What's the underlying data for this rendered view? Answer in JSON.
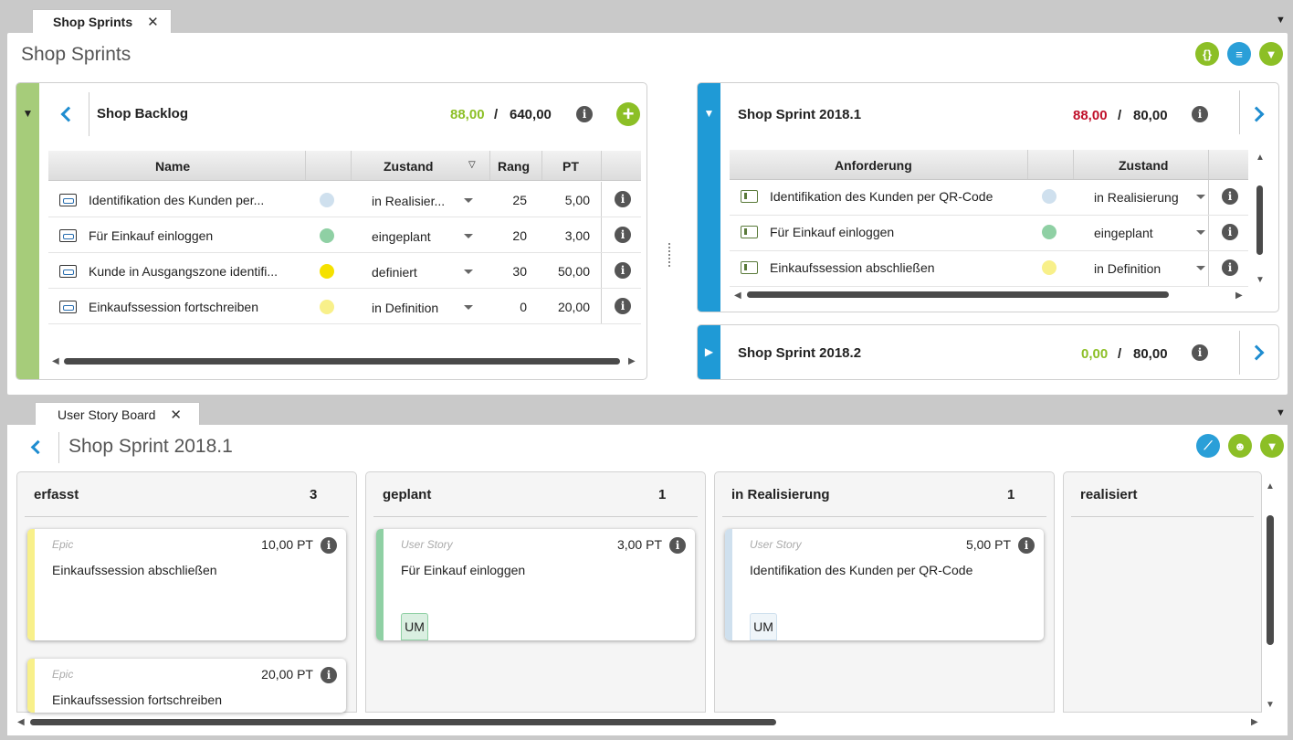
{
  "top_tab": {
    "label": "Shop Sprints"
  },
  "top_panel": {
    "title": "Shop Sprints"
  },
  "backlog": {
    "title": "Shop Backlog",
    "used": "88,00",
    "separator": "/",
    "total": "640,00",
    "columns": {
      "name": "Name",
      "zustand": "Zustand",
      "rang": "Rang",
      "pt": "PT"
    },
    "rows": [
      {
        "name": "Identifikation des Kunden per...",
        "zustand": "in Realisier...",
        "rang": "25",
        "pt": "5,00",
        "color": "#cfe0ee"
      },
      {
        "name": "Für Einkauf einloggen",
        "zustand": "eingeplant",
        "rang": "20",
        "pt": "3,00",
        "color": "#8fd0a4"
      },
      {
        "name": "Kunde in Ausgangszone identifi...",
        "zustand": "definiert",
        "rang": "30",
        "pt": "50,00",
        "color": "#f5e100"
      },
      {
        "name": "Einkaufssession fortschreiben",
        "zustand": "in Definition",
        "rang": "0",
        "pt": "20,00",
        "color": "#f8f08a"
      }
    ]
  },
  "sprint1": {
    "title": "Shop Sprint 2018.1",
    "used": "88,00",
    "separator": "/",
    "total": "80,00",
    "columns": {
      "anforderung": "Anforderung",
      "zustand": "Zustand"
    },
    "rows": [
      {
        "name": "Identifikation des Kunden per QR-Code",
        "zustand": "in Realisierung",
        "color": "#cfe0ee"
      },
      {
        "name": "Für Einkauf einloggen",
        "zustand": "eingeplant",
        "color": "#8fd0a4"
      },
      {
        "name": "Einkaufssession abschließen",
        "zustand": "in Definition",
        "color": "#f8f08a"
      }
    ]
  },
  "sprint2": {
    "title": "Shop Sprint 2018.2",
    "used": "0,00",
    "separator": "/",
    "total": "80,00"
  },
  "board_tab": {
    "label": "User Story Board"
  },
  "board": {
    "title": "Shop Sprint 2018.1",
    "columns": [
      {
        "name": "erfasst",
        "count": "3"
      },
      {
        "name": "geplant",
        "count": "1"
      },
      {
        "name": "in Realisierung",
        "count": "1"
      },
      {
        "name": "realisiert",
        "count": ""
      }
    ],
    "cards": [
      {
        "type": "Epic",
        "points": "10,00 PT",
        "title": "Einkaufssession abschließen",
        "color": "#f8f08a"
      },
      {
        "type": "Epic",
        "points": "20,00 PT",
        "title": "Einkaufssession fortschreiben",
        "color": "#f8f08a"
      },
      {
        "type": "User Story",
        "points": "3,00 PT",
        "title": "Für Einkauf einloggen",
        "tag": "UM",
        "color": "#8fd0a4"
      },
      {
        "type": "User Story",
        "points": "5,00 PT",
        "title": "Identifikation des Kunden per QR-Code",
        "tag": "UM",
        "color": "#cfe0ee"
      }
    ]
  },
  "colors": {
    "accent_blue": "#1f9ad6",
    "accent_green": "#8cbf26",
    "over_budget": "#c0102a"
  },
  "icons": {
    "info": "i",
    "add": "+",
    "close": "✕",
    "expand": "▼",
    "collapse": "▶"
  }
}
